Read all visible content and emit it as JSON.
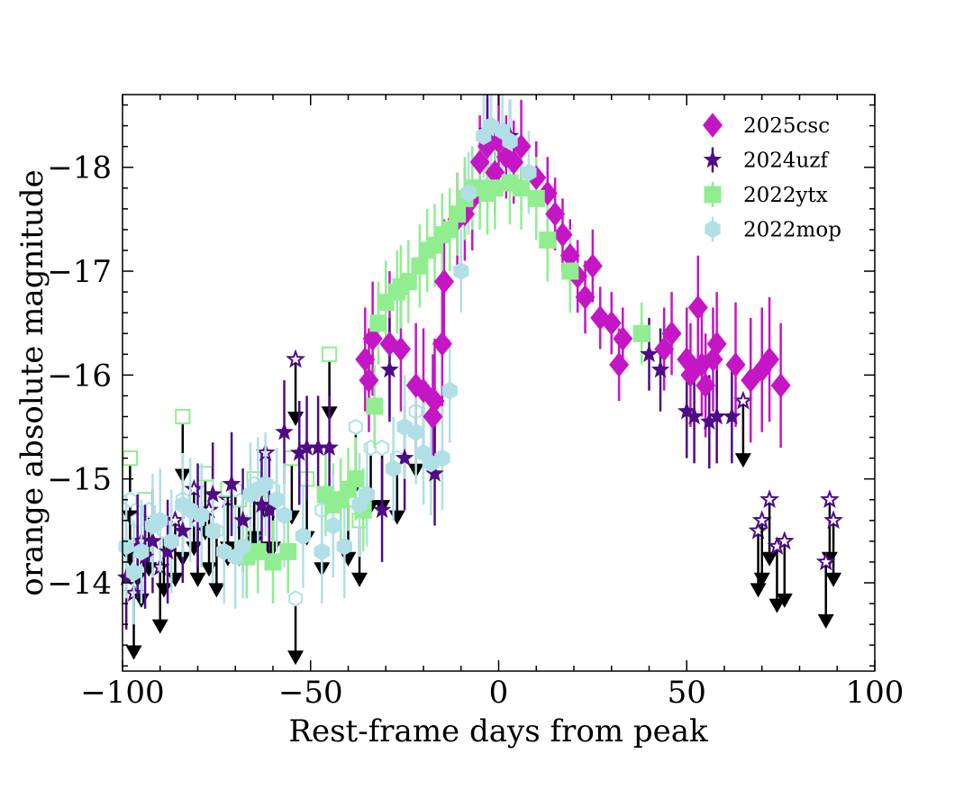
{
  "chart_data": {
    "type": "scatter",
    "xlabel": "Rest-frame days from peak",
    "ylabel": "orange absolute magnitude",
    "xlim": [
      -100,
      100
    ],
    "ylim": [
      -13.15,
      -18.7
    ],
    "y_inverted": true,
    "xticks": [
      -100,
      -50,
      0,
      50,
      100
    ],
    "xtick_labels": [
      "−100",
      "−50",
      "0",
      "50",
      "100"
    ],
    "yticks": [
      -14,
      -15,
      -16,
      -17,
      -18
    ],
    "ytick_labels": [
      "−14",
      "−15",
      "−16",
      "−17",
      "−18"
    ],
    "legend_position": "top-right",
    "limit_arrow_color": "#000000",
    "series": [
      {
        "name": "2025csc",
        "marker": "diamond",
        "color": "#c416c4",
        "points": [
          [
            -35.5,
            -16.15,
            0.5
          ],
          [
            -34.5,
            -15.95,
            0.5
          ],
          [
            -33.5,
            -16.35,
            0.55
          ],
          [
            -29,
            -16.3,
            0.7
          ],
          [
            -26,
            -16.25,
            0.6
          ],
          [
            -22,
            -15.9,
            0.6
          ],
          [
            -20,
            -15.85,
            0.6
          ],
          [
            -17.5,
            -15.6,
            0.6
          ],
          [
            -17,
            -15.75,
            0.6
          ],
          [
            -15,
            -16.3,
            0.7
          ],
          [
            -14.5,
            -16.9,
            0.6
          ],
          [
            -11,
            -17.5,
            0.45
          ],
          [
            -9,
            -17.55,
            0.45
          ],
          [
            -7,
            -17.7,
            0.5
          ],
          [
            -5,
            -18.05,
            0.45
          ],
          [
            -3,
            -18.2,
            0.45
          ],
          [
            -1,
            -17.95,
            0.4
          ],
          [
            0,
            -18.25,
            0.45
          ],
          [
            2,
            -18.1,
            0.4
          ],
          [
            4,
            -18.05,
            0.4
          ],
          [
            6,
            -18.2,
            0.45
          ],
          [
            10,
            -17.9,
            0.35
          ],
          [
            13,
            -17.75,
            0.35
          ],
          [
            15,
            -17.55,
            0.35
          ],
          [
            17,
            -17.35,
            0.35
          ],
          [
            19,
            -17.15,
            0.35
          ],
          [
            21,
            -16.95,
            0.35
          ],
          [
            23,
            -16.75,
            0.35
          ],
          [
            25,
            -17.05,
            0.35
          ],
          [
            27,
            -16.55,
            0.3
          ],
          [
            30,
            -16.5,
            0.3
          ],
          [
            32,
            -16.1,
            0.35
          ],
          [
            33,
            -16.35,
            0.3
          ],
          [
            44,
            -16.25,
            0.4
          ],
          [
            46,
            -16.4,
            0.4
          ],
          [
            50,
            -16.15,
            0.5
          ],
          [
            51,
            -16.0,
            0.5
          ],
          [
            53,
            -16.65,
            0.5
          ],
          [
            54,
            -16.1,
            0.5
          ],
          [
            55,
            -15.9,
            0.5
          ],
          [
            57,
            -16.15,
            0.5
          ],
          [
            58,
            -16.3,
            0.5
          ],
          [
            63,
            -16.1,
            0.6
          ],
          [
            67,
            -15.95,
            0.6
          ],
          [
            70,
            -16.05,
            0.6
          ],
          [
            72,
            -16.15,
            0.6
          ],
          [
            75,
            -15.9,
            0.6
          ]
        ],
        "upper_limits": []
      },
      {
        "name": "2024uzf",
        "marker": "star",
        "color": "#4f0b87",
        "points": [
          [
            -99,
            -14.05,
            0.5
          ],
          [
            -96,
            -14.35,
            0.5
          ],
          [
            -94,
            -14.25,
            0.5
          ],
          [
            -92,
            -14.4,
            0.5
          ],
          [
            -88,
            -14.3,
            0.5
          ],
          [
            -84,
            -14.5,
            0.5
          ],
          [
            -80,
            -14.65,
            0.5
          ],
          [
            -76,
            -14.85,
            0.5
          ],
          [
            -71,
            -14.95,
            0.5
          ],
          [
            -68,
            -14.6,
            0.5
          ],
          [
            -63,
            -14.75,
            0.5
          ],
          [
            -61,
            -14.7,
            0.5
          ],
          [
            -57,
            -15.45,
            0.5
          ],
          [
            -53,
            -15.25,
            0.5
          ],
          [
            -51,
            -15.3,
            0.5
          ],
          [
            -48,
            -15.3,
            0.5
          ],
          [
            -45,
            -15.3,
            0.5
          ],
          [
            -31,
            -14.7,
            0.5
          ],
          [
            -29,
            -16.05,
            0.5
          ],
          [
            -25,
            -15.2,
            0.5
          ],
          [
            -17,
            -15.05,
            0.5
          ],
          [
            -3,
            -18.35,
            0.4
          ],
          [
            3,
            -18.3,
            0.35
          ],
          [
            40,
            -16.2,
            0.35
          ],
          [
            43,
            -16.05,
            0.4
          ],
          [
            50,
            -15.65,
            0.45
          ],
          [
            52,
            -15.6,
            0.45
          ],
          [
            56,
            -15.55,
            0.45
          ],
          [
            58,
            -15.6,
            0.45
          ],
          [
            62,
            -15.6,
            0.45
          ]
        ],
        "upper_limits": [
          [
            -97,
            -13.9
          ],
          [
            -95,
            -14.4
          ],
          [
            -90,
            -14.15
          ],
          [
            -86,
            -14.6
          ],
          [
            -81,
            -14.9
          ],
          [
            -77,
            -14.7
          ],
          [
            -72,
            -14.8
          ],
          [
            -62,
            -15.25
          ],
          [
            -54,
            -16.15
          ],
          [
            65,
            -15.75
          ],
          [
            69,
            -14.5
          ],
          [
            70,
            -14.6
          ],
          [
            72,
            -14.8
          ],
          [
            74,
            -14.35
          ],
          [
            76,
            -14.4
          ],
          [
            88,
            -14.8
          ],
          [
            89,
            -14.6
          ],
          [
            87,
            -14.2
          ]
        ]
      },
      {
        "name": "2022ytx",
        "marker": "square",
        "color": "#90ee90",
        "points": [
          [
            -67,
            -14.25,
            0.4
          ],
          [
            -64,
            -14.3,
            0.4
          ],
          [
            -60,
            -14.2,
            0.4
          ],
          [
            -56,
            -14.3,
            0.4
          ],
          [
            -46,
            -14.85,
            0.4
          ],
          [
            -44,
            -14.75,
            0.4
          ],
          [
            -42,
            -14.8,
            0.4
          ],
          [
            -40,
            -14.9,
            0.4
          ],
          [
            -38,
            -15.0,
            0.4
          ],
          [
            -36,
            -14.7,
            0.4
          ],
          [
            -33,
            -15.7,
            0.4
          ],
          [
            -32,
            -16.5,
            0.4
          ],
          [
            -30,
            -16.7,
            0.4
          ],
          [
            -27,
            -16.8,
            0.4
          ],
          [
            -26,
            -16.85,
            0.4
          ],
          [
            -24,
            -16.9,
            0.4
          ],
          [
            -21,
            -17.05,
            0.4
          ],
          [
            -19,
            -17.2,
            0.4
          ],
          [
            -17,
            -17.25,
            0.4
          ],
          [
            -15,
            -17.35,
            0.4
          ],
          [
            -13,
            -17.4,
            0.4
          ],
          [
            -11,
            -17.55,
            0.4
          ],
          [
            -9,
            -17.7,
            0.4
          ],
          [
            -7,
            -17.8,
            0.4
          ],
          [
            -5,
            -17.8,
            0.4
          ],
          [
            -3,
            -17.75,
            0.4
          ],
          [
            -1,
            -17.8,
            0.4
          ],
          [
            3,
            -17.85,
            0.4
          ],
          [
            6,
            -17.8,
            0.4
          ],
          [
            10,
            -17.7,
            0.4
          ],
          [
            13,
            -17.3,
            0.4
          ],
          [
            19,
            -17.0,
            0.4
          ],
          [
            38,
            -16.4,
            0.3
          ]
        ],
        "upper_limits": [
          [
            -98,
            -15.2
          ],
          [
            -94,
            -14.8
          ],
          [
            -84,
            -15.6
          ],
          [
            -78,
            -15.05
          ],
          [
            -72,
            -14.9
          ],
          [
            -69,
            -14.8
          ],
          [
            -65,
            -15.0
          ],
          [
            -61,
            -14.9
          ],
          [
            -55,
            -15.2
          ],
          [
            -51,
            -15.0
          ],
          [
            -45,
            -16.2
          ],
          [
            -40,
            -14.8
          ],
          [
            -37,
            -14.6
          ]
        ]
      },
      {
        "name": "2022mop",
        "marker": "hexagon",
        "color": "#b0e0e6",
        "points": [
          [
            -99,
            -14.35,
            0.5
          ],
          [
            -97,
            -14.1,
            0.5
          ],
          [
            -95,
            -14.3,
            0.5
          ],
          [
            -92,
            -14.55,
            0.5
          ],
          [
            -90,
            -14.6,
            0.5
          ],
          [
            -87,
            -14.4,
            0.5
          ],
          [
            -84,
            -14.75,
            0.5
          ],
          [
            -82,
            -14.7,
            0.5
          ],
          [
            -79,
            -14.65,
            0.5
          ],
          [
            -76,
            -14.5,
            0.5
          ],
          [
            -73,
            -14.3,
            0.5
          ],
          [
            -70,
            -14.25,
            0.5
          ],
          [
            -68,
            -14.35,
            0.5
          ],
          [
            -66,
            -14.85,
            0.5
          ],
          [
            -64,
            -14.9,
            0.5
          ],
          [
            -62,
            -14.95,
            0.5
          ],
          [
            -59,
            -14.8,
            0.5
          ],
          [
            -57,
            -14.65,
            0.5
          ],
          [
            -52,
            -14.45,
            0.5
          ],
          [
            -47,
            -14.3,
            0.5
          ],
          [
            -44,
            -14.55,
            0.5
          ],
          [
            -41,
            -14.35,
            0.5
          ],
          [
            -37,
            -14.75,
            0.5
          ],
          [
            -35,
            -14.85,
            0.5
          ],
          [
            -28,
            -15.1,
            0.5
          ],
          [
            -25,
            -15.5,
            0.5
          ],
          [
            -22,
            -15.45,
            0.5
          ],
          [
            -20,
            -15.25,
            0.5
          ],
          [
            -18,
            -15.15,
            0.5
          ],
          [
            -15,
            -15.2,
            0.5
          ],
          [
            -13,
            -15.85,
            0.5
          ],
          [
            -10,
            -17.0,
            0.4
          ],
          [
            -8,
            -17.75,
            0.4
          ],
          [
            -4,
            -18.3,
            0.4
          ],
          [
            -2,
            -18.4,
            0.4
          ],
          [
            1,
            -18.35,
            0.4
          ],
          [
            3,
            -18.25,
            0.4
          ],
          [
            8,
            -17.95,
            0.4
          ]
        ],
        "upper_limits": [
          [
            -98,
            -14.8
          ],
          [
            -96,
            -14.6
          ],
          [
            -93,
            -14.7
          ],
          [
            -89,
            -14.5
          ],
          [
            -84,
            -14.8
          ],
          [
            -80,
            -14.6
          ],
          [
            -75,
            -14.5
          ],
          [
            -70,
            -14.9
          ],
          [
            -65,
            -14.95
          ],
          [
            -60,
            -14.9
          ],
          [
            -54,
            -13.85
          ],
          [
            -47,
            -14.7
          ],
          [
            -38,
            -15.5
          ],
          [
            -34,
            -15.3
          ],
          [
            -31,
            -15.3
          ],
          [
            -27,
            -15.2
          ],
          [
            -22,
            -15.65
          ]
        ]
      }
    ]
  }
}
